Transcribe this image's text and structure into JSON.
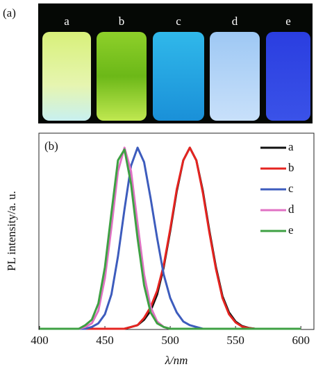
{
  "panel_a": {
    "label": "(a)",
    "vials": [
      "a",
      "b",
      "c",
      "d",
      "e"
    ]
  },
  "chart_data": {
    "type": "line",
    "panel_label": "(b)",
    "x_label": "λ/nm",
    "y_label": "PL  intensity/a. u.",
    "x": [
      400,
      405,
      410,
      415,
      420,
      425,
      430,
      435,
      440,
      445,
      450,
      455,
      460,
      465,
      470,
      475,
      480,
      485,
      490,
      495,
      500,
      505,
      510,
      515,
      520,
      525,
      530,
      535,
      540,
      545,
      550,
      555,
      560,
      565,
      570,
      575,
      580,
      585,
      590,
      595,
      600
    ],
    "xlim": [
      400,
      610
    ],
    "xticks": [
      400,
      450,
      500,
      550,
      600
    ],
    "ylim": [
      0,
      1.08
    ],
    "legend": "upper right",
    "series": [
      {
        "name": "a",
        "color": "#111111",
        "values": [
          0,
          0,
          0,
          0,
          0,
          0,
          0,
          0,
          0,
          0,
          0,
          0,
          0,
          0,
          0.01,
          0.02,
          0.05,
          0.1,
          0.19,
          0.34,
          0.54,
          0.76,
          0.93,
          1,
          0.93,
          0.76,
          0.54,
          0.34,
          0.18,
          0.09,
          0.04,
          0.015,
          0.005,
          0,
          0,
          0,
          0,
          0,
          0,
          0,
          0
        ]
      },
      {
        "name": "b",
        "color": "#e52420",
        "values": [
          0,
          0,
          0,
          0,
          0,
          0,
          0,
          0,
          0,
          0,
          0,
          0,
          0,
          0,
          0.01,
          0.02,
          0.06,
          0.12,
          0.21,
          0.35,
          0.55,
          0.77,
          0.93,
          1,
          0.93,
          0.75,
          0.53,
          0.33,
          0.17,
          0.08,
          0.035,
          0.012,
          0.004,
          0,
          0,
          0,
          0,
          0,
          0,
          0,
          0
        ]
      },
      {
        "name": "c",
        "color": "#3d5cbd",
        "values": [
          0,
          0,
          0,
          0,
          0,
          0,
          0,
          0,
          0.01,
          0.03,
          0.08,
          0.19,
          0.4,
          0.66,
          0.9,
          1,
          0.92,
          0.72,
          0.5,
          0.3,
          0.17,
          0.09,
          0.04,
          0.02,
          0.01,
          0,
          0,
          0,
          0,
          0,
          0,
          0,
          0,
          0,
          0,
          0,
          0,
          0,
          0,
          0,
          0
        ]
      },
      {
        "name": "d",
        "color": "#e072c4",
        "values": [
          0,
          0,
          0,
          0,
          0,
          0,
          0,
          0.01,
          0.03,
          0.1,
          0.28,
          0.56,
          0.87,
          1,
          0.87,
          0.58,
          0.3,
          0.12,
          0.04,
          0.01,
          0,
          0,
          0,
          0,
          0,
          0,
          0,
          0,
          0,
          0,
          0,
          0,
          0,
          0,
          0,
          0,
          0,
          0,
          0,
          0,
          0
        ]
      },
      {
        "name": "e",
        "color": "#3ea043",
        "values": [
          0,
          0,
          0,
          0,
          0,
          0,
          0,
          0.02,
          0.05,
          0.14,
          0.34,
          0.64,
          0.93,
          0.99,
          0.8,
          0.5,
          0.24,
          0.09,
          0.03,
          0.01,
          0,
          0,
          0,
          0,
          0,
          0,
          0,
          0,
          0,
          0,
          0,
          0,
          0,
          0,
          0,
          0,
          0,
          0,
          0,
          0,
          0
        ]
      }
    ]
  }
}
